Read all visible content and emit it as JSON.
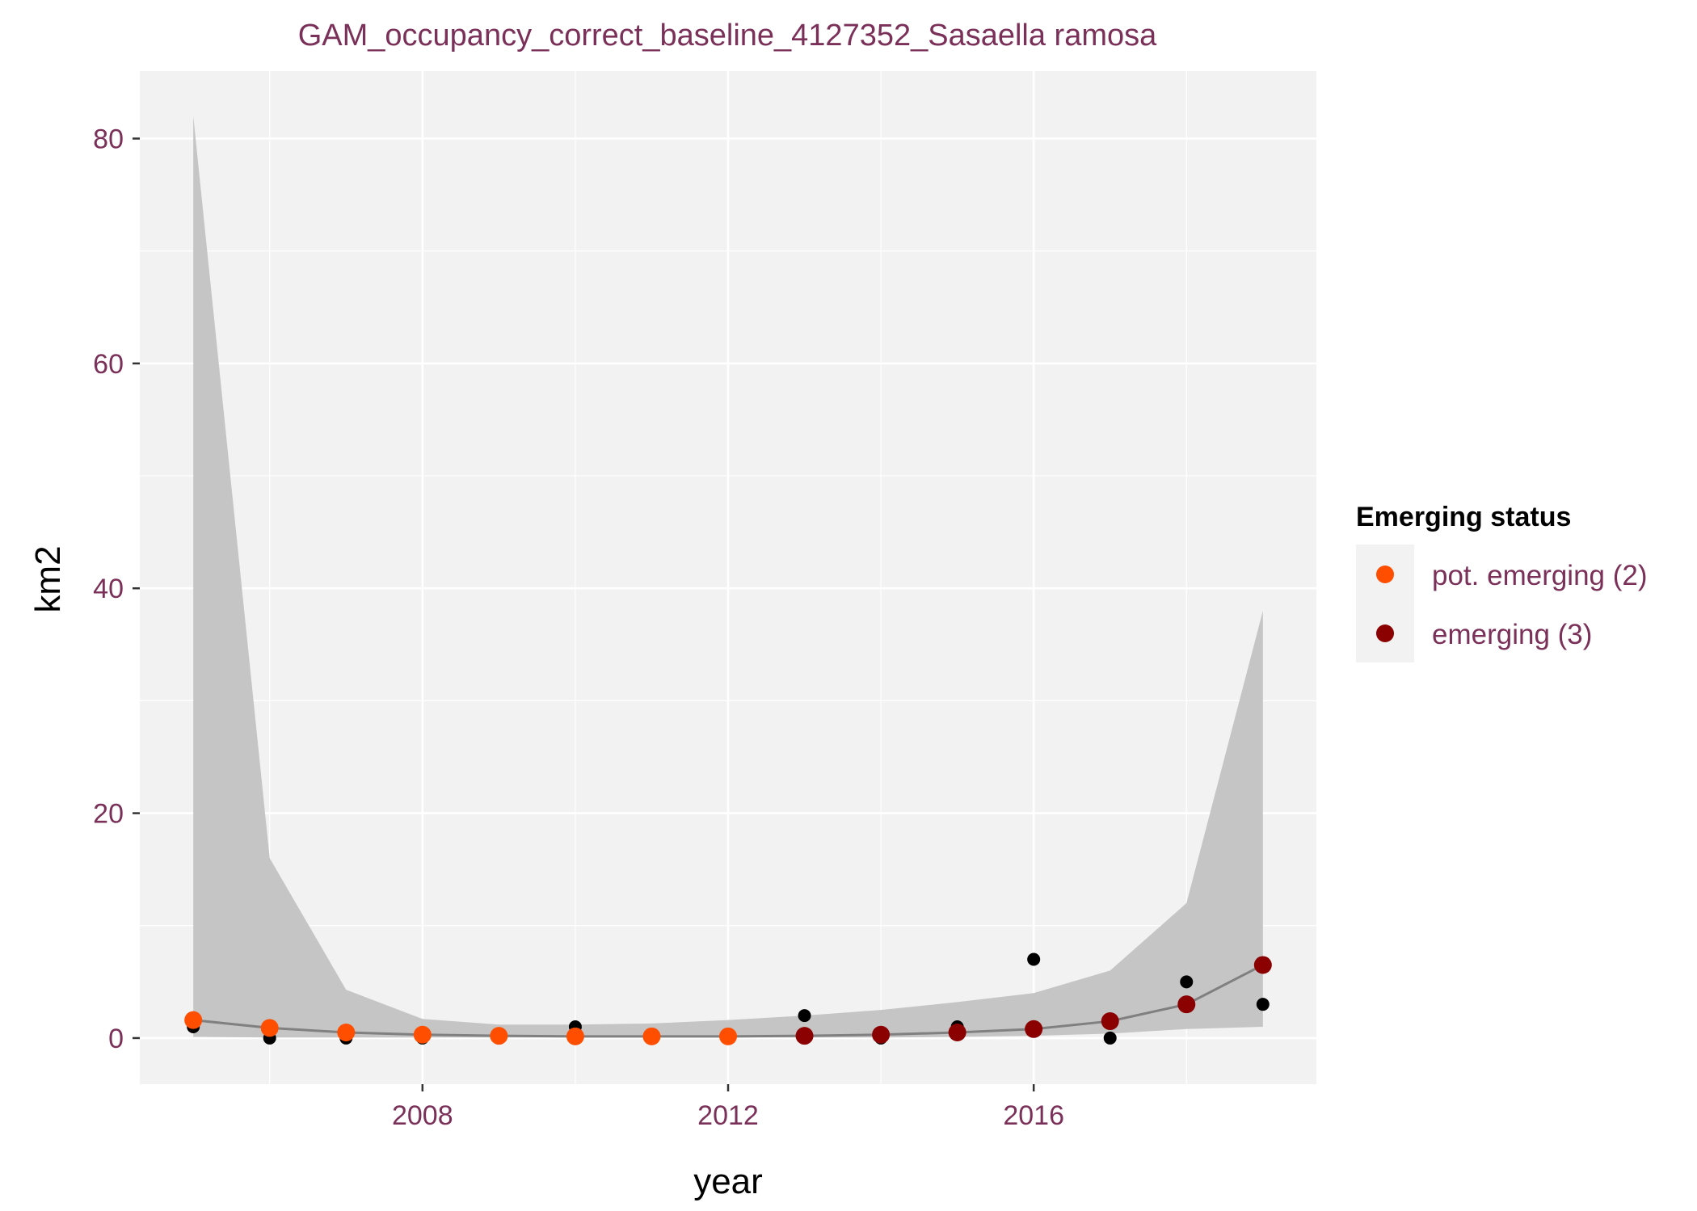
{
  "chart_data": {
    "type": "line",
    "title": "GAM_occupancy_correct_baseline_4127352_Sasaella ramosa",
    "xlabel": "year",
    "ylabel": "km2",
    "xlim": [
      2004.3,
      2019.7
    ],
    "ylim": [
      -4.1,
      86.0
    ],
    "x_ticks": [
      2008,
      2012,
      2016
    ],
    "y_ticks": [
      0,
      20,
      40,
      60,
      80
    ],
    "grid": true,
    "legend_position": "right",
    "legend_title": "Emerging status",
    "colors": {
      "panel": "#F2F2F2",
      "grid_major": "#FFFFFF",
      "ribbon": "#C5C5C5",
      "fit_line": "#808080",
      "observed": "#000000",
      "text": "#7A3058",
      "pot_emerging": "#FF4E00",
      "emerging": "#8B0000"
    },
    "legend": [
      {
        "label": "pot. emerging (2)",
        "color": "#FF4E00"
      },
      {
        "label": "emerging (3)",
        "color": "#8B0000"
      }
    ],
    "x": [
      2005,
      2006,
      2007,
      2008,
      2009,
      2010,
      2011,
      2012,
      2013,
      2014,
      2015,
      2016,
      2017,
      2018,
      2019
    ],
    "fit": [
      1.6,
      0.9,
      0.5,
      0.3,
      0.2,
      0.15,
      0.15,
      0.15,
      0.2,
      0.3,
      0.5,
      0.8,
      1.5,
      3.0,
      6.5
    ],
    "ribbon_lower": [
      0.1,
      0.05,
      0.05,
      0.05,
      0.05,
      0.05,
      0.05,
      0.05,
      0.05,
      0.05,
      0.1,
      0.2,
      0.4,
      0.8,
      1.0
    ],
    "ribbon_upper": [
      82.0,
      16.0,
      4.3,
      1.7,
      1.2,
      1.2,
      1.3,
      1.6,
      2.0,
      2.5,
      3.2,
      4.0,
      6.0,
      12.0,
      38.0
    ],
    "observed": [
      {
        "x": 2005,
        "y": 1
      },
      {
        "x": 2006,
        "y": 0
      },
      {
        "x": 2007,
        "y": 0
      },
      {
        "x": 2008,
        "y": 0
      },
      {
        "x": 2009,
        "y": 0
      },
      {
        "x": 2010,
        "y": 1
      },
      {
        "x": 2011,
        "y": 0
      },
      {
        "x": 2012,
        "y": 0
      },
      {
        "x": 2013,
        "y": 2
      },
      {
        "x": 2014,
        "y": 0
      },
      {
        "x": 2015,
        "y": 1
      },
      {
        "x": 2016,
        "y": 7
      },
      {
        "x": 2017,
        "y": 0
      },
      {
        "x": 2018,
        "y": 5
      },
      {
        "x": 2019,
        "y": 3
      }
    ],
    "status_points": [
      {
        "x": 2005,
        "y": 1.6,
        "status": "pot. emerging (2)"
      },
      {
        "x": 2006,
        "y": 0.9,
        "status": "pot. emerging (2)"
      },
      {
        "x": 2007,
        "y": 0.5,
        "status": "pot. emerging (2)"
      },
      {
        "x": 2008,
        "y": 0.3,
        "status": "pot. emerging (2)"
      },
      {
        "x": 2009,
        "y": 0.2,
        "status": "pot. emerging (2)"
      },
      {
        "x": 2010,
        "y": 0.15,
        "status": "pot. emerging (2)"
      },
      {
        "x": 2011,
        "y": 0.15,
        "status": "pot. emerging (2)"
      },
      {
        "x": 2012,
        "y": 0.15,
        "status": "pot. emerging (2)"
      },
      {
        "x": 2013,
        "y": 0.2,
        "status": "emerging (3)"
      },
      {
        "x": 2014,
        "y": 0.3,
        "status": "emerging (3)"
      },
      {
        "x": 2015,
        "y": 0.5,
        "status": "emerging (3)"
      },
      {
        "x": 2016,
        "y": 0.8,
        "status": "emerging (3)"
      },
      {
        "x": 2017,
        "y": 1.5,
        "status": "emerging (3)"
      },
      {
        "x": 2018,
        "y": 3.0,
        "status": "emerging (3)"
      },
      {
        "x": 2019,
        "y": 6.5,
        "status": "emerging (3)"
      }
    ]
  }
}
